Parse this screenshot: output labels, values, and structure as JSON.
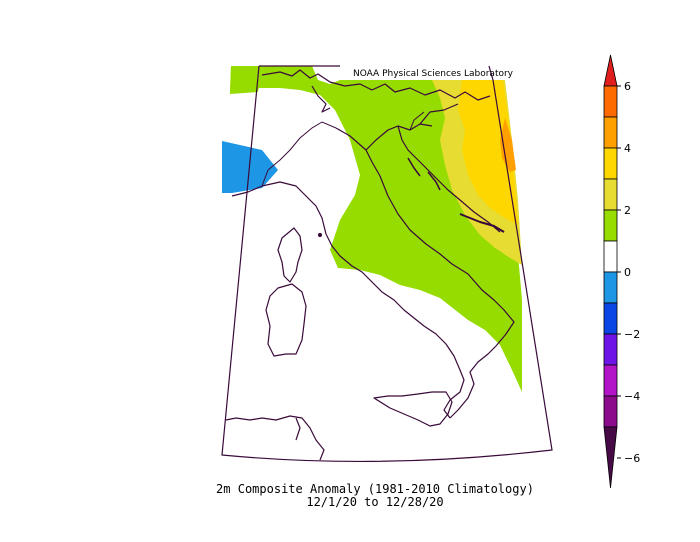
{
  "map": {
    "credit": "NOAA Physical Sciences Laboratory",
    "caption_line1": "2m    Composite Anomaly (1981-2010 Climatology)",
    "caption_line2": "12/1/20  to 12/28/20",
    "region": "Italy and surrounding area",
    "colors": {
      "boundary": "#3a0a3a",
      "green": "#96dc00",
      "light_yellow": "#e6dc32",
      "yellow": "#ffd700",
      "orange": "#ffa000",
      "light_blue": "#1e96e6"
    }
  },
  "colorbar": {
    "tick_labels": [
      "6",
      "4",
      "2",
      "0",
      "−2",
      "−4",
      "−6"
    ],
    "bands": [
      {
        "range": "6 to 8",
        "color": "#e01e1e"
      },
      {
        "range": "5 to 6",
        "color": "#ff6a00"
      },
      {
        "range": "4 to 5",
        "color": "#ffa000"
      },
      {
        "range": "3 to 4",
        "color": "#ffd700"
      },
      {
        "range": "2 to 3",
        "color": "#e6dc32"
      },
      {
        "range": "1 to 2",
        "color": "#96dc00"
      },
      {
        "range": "-1 to 1",
        "color": "#ffffff"
      },
      {
        "range": "-2 to -1",
        "color": "#1e96e6"
      },
      {
        "range": "-3 to -2",
        "color": "#0a46e6"
      },
      {
        "range": "-4 to -3",
        "color": "#6e14e6"
      },
      {
        "range": "-5 to -4",
        "color": "#b414c8"
      },
      {
        "range": "-6 to -5",
        "color": "#8c0a8c"
      },
      {
        "range": "-8 to -6",
        "color": "#460a46"
      }
    ]
  }
}
